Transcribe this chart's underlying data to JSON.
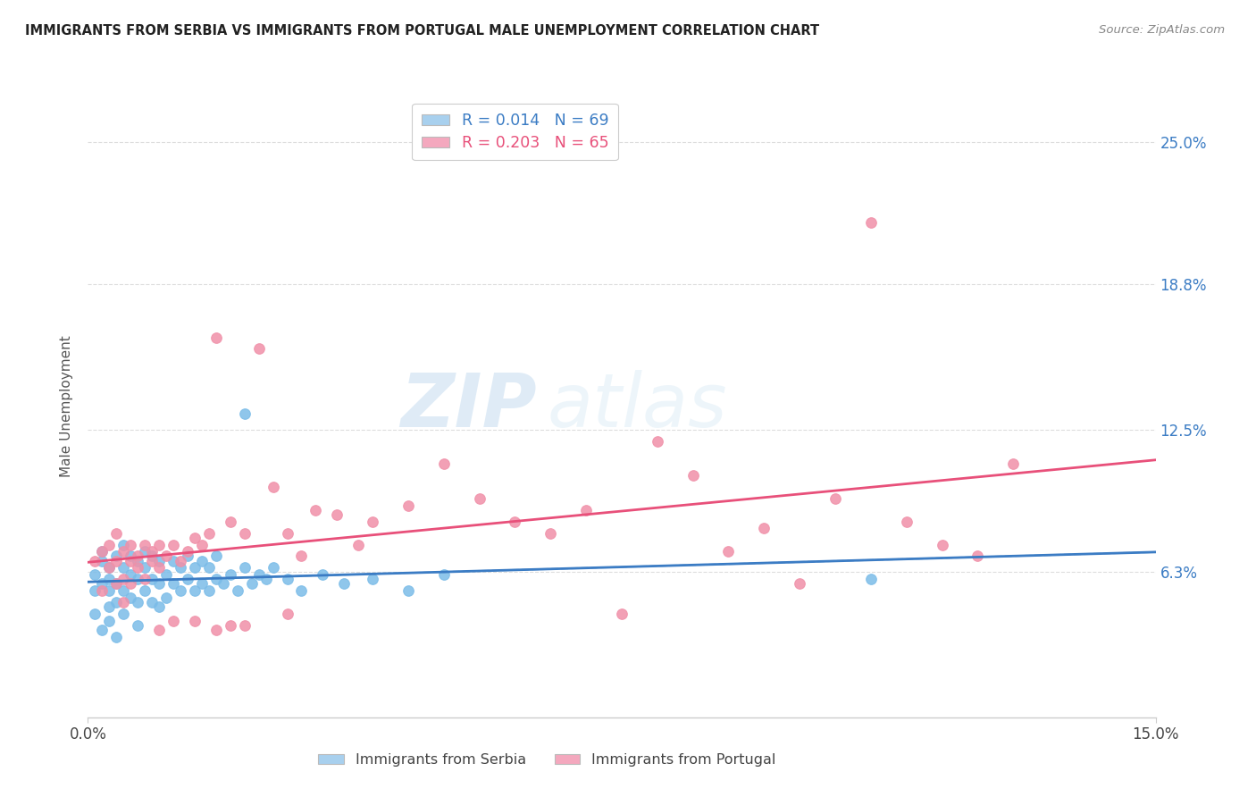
{
  "title": "IMMIGRANTS FROM SERBIA VS IMMIGRANTS FROM PORTUGAL MALE UNEMPLOYMENT CORRELATION CHART",
  "source": "Source: ZipAtlas.com",
  "ylabel": "Male Unemployment",
  "ytick_labels": [
    "6.3%",
    "12.5%",
    "18.8%",
    "25.0%"
  ],
  "ytick_vals": [
    0.063,
    0.125,
    0.188,
    0.25
  ],
  "xlim": [
    0.0,
    0.15
  ],
  "ylim": [
    0.0,
    0.27
  ],
  "r_serbia": 0.014,
  "n_serbia": 69,
  "r_portugal": 0.203,
  "n_portugal": 65,
  "serbia_color": "#A8D0EE",
  "portugal_color": "#F4A8BE",
  "serbia_line_color": "#3B7CC4",
  "portugal_line_color": "#E8507A",
  "serbia_scatter_color": "#7BBCE8",
  "portugal_scatter_color": "#F090A8",
  "watermark_zip": "ZIP",
  "watermark_atlas": "atlas",
  "grid_color": "#DDDDDD",
  "background_color": "#FFFFFF",
  "serbia_x": [
    0.001,
    0.001,
    0.001,
    0.002,
    0.002,
    0.002,
    0.002,
    0.003,
    0.003,
    0.003,
    0.003,
    0.003,
    0.004,
    0.004,
    0.004,
    0.004,
    0.005,
    0.005,
    0.005,
    0.005,
    0.006,
    0.006,
    0.006,
    0.007,
    0.007,
    0.007,
    0.007,
    0.008,
    0.008,
    0.008,
    0.009,
    0.009,
    0.009,
    0.01,
    0.01,
    0.01,
    0.011,
    0.011,
    0.012,
    0.012,
    0.013,
    0.013,
    0.014,
    0.014,
    0.015,
    0.015,
    0.016,
    0.016,
    0.017,
    0.017,
    0.018,
    0.018,
    0.019,
    0.02,
    0.021,
    0.022,
    0.023,
    0.024,
    0.025,
    0.026,
    0.028,
    0.03,
    0.033,
    0.036,
    0.04,
    0.045,
    0.05,
    0.11,
    0.022
  ],
  "serbia_y": [
    0.055,
    0.062,
    0.045,
    0.068,
    0.058,
    0.072,
    0.038,
    0.065,
    0.055,
    0.042,
    0.06,
    0.048,
    0.07,
    0.058,
    0.05,
    0.035,
    0.065,
    0.055,
    0.045,
    0.075,
    0.062,
    0.052,
    0.07,
    0.06,
    0.05,
    0.068,
    0.04,
    0.065,
    0.055,
    0.072,
    0.06,
    0.05,
    0.07,
    0.058,
    0.048,
    0.068,
    0.062,
    0.052,
    0.058,
    0.068,
    0.055,
    0.065,
    0.06,
    0.07,
    0.055,
    0.065,
    0.058,
    0.068,
    0.055,
    0.065,
    0.06,
    0.07,
    0.058,
    0.062,
    0.055,
    0.065,
    0.058,
    0.062,
    0.06,
    0.065,
    0.06,
    0.055,
    0.062,
    0.058,
    0.06,
    0.055,
    0.062,
    0.06,
    0.132
  ],
  "portugal_x": [
    0.001,
    0.002,
    0.002,
    0.003,
    0.003,
    0.004,
    0.004,
    0.004,
    0.005,
    0.005,
    0.005,
    0.006,
    0.006,
    0.006,
    0.007,
    0.007,
    0.008,
    0.008,
    0.009,
    0.009,
    0.01,
    0.01,
    0.011,
    0.012,
    0.013,
    0.014,
    0.015,
    0.016,
    0.017,
    0.018,
    0.02,
    0.022,
    0.024,
    0.026,
    0.028,
    0.03,
    0.032,
    0.035,
    0.038,
    0.04,
    0.045,
    0.05,
    0.055,
    0.06,
    0.065,
    0.07,
    0.075,
    0.08,
    0.085,
    0.09,
    0.095,
    0.1,
    0.105,
    0.11,
    0.115,
    0.12,
    0.125,
    0.13,
    0.028,
    0.02,
    0.01,
    0.012,
    0.015,
    0.018,
    0.022
  ],
  "portugal_y": [
    0.068,
    0.072,
    0.055,
    0.065,
    0.075,
    0.068,
    0.058,
    0.08,
    0.072,
    0.06,
    0.05,
    0.068,
    0.075,
    0.058,
    0.07,
    0.065,
    0.075,
    0.06,
    0.068,
    0.072,
    0.065,
    0.075,
    0.07,
    0.075,
    0.068,
    0.072,
    0.078,
    0.075,
    0.08,
    0.165,
    0.085,
    0.08,
    0.16,
    0.1,
    0.08,
    0.07,
    0.09,
    0.088,
    0.075,
    0.085,
    0.092,
    0.11,
    0.095,
    0.085,
    0.08,
    0.09,
    0.045,
    0.12,
    0.105,
    0.072,
    0.082,
    0.058,
    0.095,
    0.215,
    0.085,
    0.075,
    0.07,
    0.11,
    0.045,
    0.04,
    0.038,
    0.042,
    0.042,
    0.038,
    0.04
  ]
}
